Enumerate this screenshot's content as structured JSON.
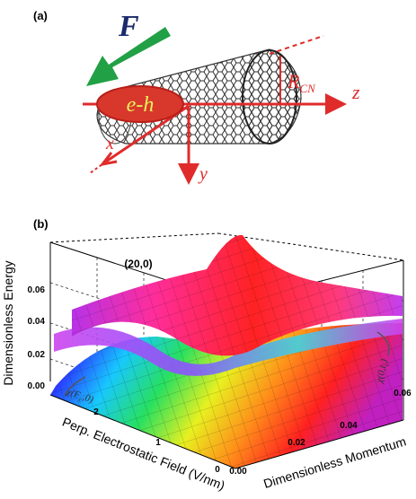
{
  "panel_a": {
    "label": "(a)",
    "force_symbol": "F",
    "exciton_label": "e-h",
    "radius_symbol": "R",
    "radius_subscript": "CN",
    "axis_x": "x",
    "axis_y": "y",
    "axis_z": "z",
    "colors": {
      "force_arrow": "#21a046",
      "force_text": "#1b2a6b",
      "exciton_fill": "#d8382c",
      "exciton_text": "#e9f05a",
      "axes": "#e02b2b",
      "tube": "#333333"
    }
  },
  "panel_b": {
    "label": "(b)",
    "tube_index": "(20,0)",
    "zlabel": "Dimensionless Energy",
    "xlabel": "Perp. Electrostatic Field (V/nm)",
    "ylabel": "Dimensionless Momentum",
    "ann_field_pre": "χ(F",
    "ann_field_sub": "c",
    "ann_field_post": ",0)",
    "ann_mom_pre": "χ(0,t",
    "ann_mom_sub": "c",
    "ann_mom_post": ")",
    "chart_data": {
      "type": "surface",
      "z_ticks": [
        "0.06",
        "0.04",
        "0.02",
        "0.00"
      ],
      "field_ticks": [
        "2",
        "1",
        "0"
      ],
      "momentum_ticks": [
        "0.00",
        "0.02",
        "0.04",
        "0.06"
      ],
      "zlim": [
        0,
        0.07
      ],
      "field_lim": [
        0,
        2.4
      ],
      "momentum_lim": [
        0,
        0.07
      ],
      "grid": true,
      "colormap": "hsv"
    }
  }
}
